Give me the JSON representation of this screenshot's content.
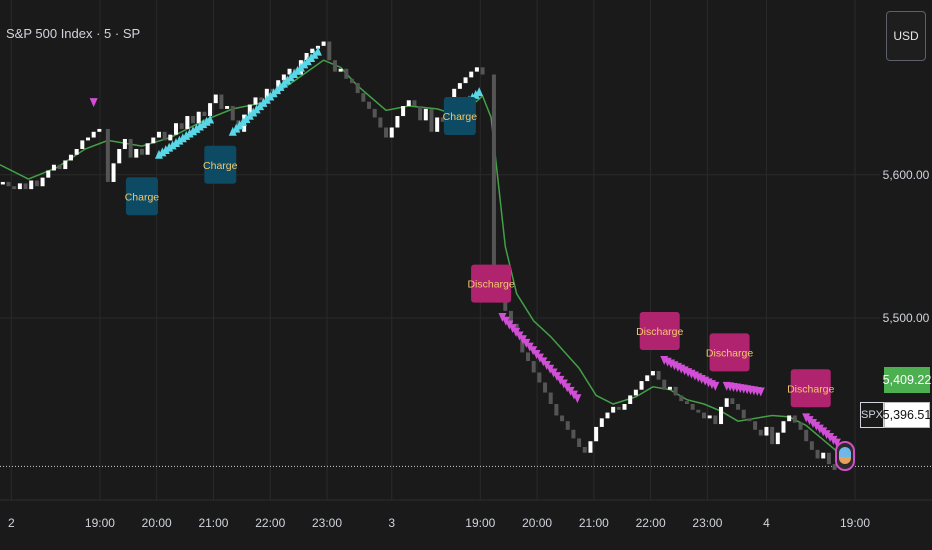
{
  "header": {
    "title": "S&P 500 Index · 5 · SP"
  },
  "currency_button": {
    "label": "USD"
  },
  "price_tags": {
    "ema_value": "5,409.22",
    "last_price": "5,396.51",
    "symbol": "SPX"
  },
  "colors": {
    "background": "#1a1a1a",
    "grid": "#2a2a2a",
    "candle_up": "#ffffff",
    "candle_down": "#555555",
    "ema_line": "#43a047",
    "charge_marker": "#5ad7e6",
    "discharge_marker": "#d14fd6",
    "charge_label_bg": "#0d4a63",
    "discharge_label_bg": "#b0246f",
    "label_text": "#f2c76e",
    "green_tag": "#4caf50"
  },
  "chart_data": {
    "type": "line",
    "title": "S&P 500 Index · 5 · SP",
    "ylim": [
      5373,
      5722
    ],
    "y_ticks": [
      5600,
      5500
    ],
    "y_tick_labels": [
      "5,600.00",
      "5,500.00"
    ],
    "x_ticks": [
      {
        "label": "2",
        "t": 0
      },
      {
        "label": "19:00",
        "t": 1.56
      },
      {
        "label": "20:00",
        "t": 2.56
      },
      {
        "label": "21:00",
        "t": 3.56
      },
      {
        "label": "22:00",
        "t": 4.56
      },
      {
        "label": "23:00",
        "t": 5.56
      },
      {
        "label": "3",
        "t": 6.7
      },
      {
        "label": "19:00",
        "t": 8.26
      },
      {
        "label": "20:00",
        "t": 9.26
      },
      {
        "label": "21:00",
        "t": 10.26
      },
      {
        "label": "22:00",
        "t": 11.26
      },
      {
        "label": "23:00",
        "t": 12.26
      },
      {
        "label": "4",
        "t": 13.3
      },
      {
        "label": "19:00",
        "t": 14.86
      }
    ],
    "x_range": [
      -0.2,
      15.3
    ],
    "series": [
      {
        "type": "candles",
        "data": [
          [
            -0.15,
            5595
          ],
          [
            -0.05,
            5592
          ],
          [
            0.05,
            5590
          ],
          [
            0.15,
            5594
          ],
          [
            0.25,
            5590
          ],
          [
            0.35,
            5596
          ],
          [
            0.45,
            5592
          ],
          [
            0.55,
            5598
          ],
          [
            0.65,
            5603
          ],
          [
            0.75,
            5607
          ],
          [
            0.85,
            5604
          ],
          [
            0.95,
            5610
          ],
          [
            1.05,
            5614
          ],
          [
            1.15,
            5618
          ],
          [
            1.25,
            5624
          ],
          [
            1.35,
            5626
          ],
          [
            1.45,
            5630
          ],
          [
            1.55,
            5632
          ],
          [
            1.7,
            5595
          ],
          [
            1.8,
            5608
          ],
          [
            1.9,
            5618
          ],
          [
            2.0,
            5625
          ],
          [
            2.1,
            5612
          ],
          [
            2.2,
            5618
          ],
          [
            2.3,
            5614
          ],
          [
            2.4,
            5622
          ],
          [
            2.5,
            5626
          ],
          [
            2.6,
            5630
          ],
          [
            2.7,
            5624
          ],
          [
            2.8,
            5628
          ],
          [
            2.9,
            5636
          ],
          [
            3.0,
            5632
          ],
          [
            3.1,
            5641
          ],
          [
            3.2,
            5636
          ],
          [
            3.3,
            5644
          ],
          [
            3.4,
            5641
          ],
          [
            3.5,
            5650
          ],
          [
            3.6,
            5656
          ],
          [
            3.7,
            5646
          ],
          [
            3.8,
            5648
          ],
          [
            3.9,
            5638
          ],
          [
            4.0,
            5630
          ],
          [
            4.1,
            5642
          ],
          [
            4.2,
            5649
          ],
          [
            4.3,
            5654
          ],
          [
            4.4,
            5652
          ],
          [
            4.5,
            5660
          ],
          [
            4.6,
            5658
          ],
          [
            4.7,
            5666
          ],
          [
            4.8,
            5670
          ],
          [
            4.9,
            5674
          ],
          [
            5.0,
            5670
          ],
          [
            5.1,
            5680
          ],
          [
            5.2,
            5685
          ],
          [
            5.3,
            5688
          ],
          [
            5.4,
            5690
          ],
          [
            5.5,
            5693
          ],
          [
            5.6,
            5680
          ],
          [
            5.7,
            5672
          ],
          [
            5.8,
            5674
          ],
          [
            5.9,
            5667
          ],
          [
            6.0,
            5664
          ],
          [
            6.1,
            5657
          ],
          [
            6.2,
            5651
          ],
          [
            6.3,
            5646
          ],
          [
            6.4,
            5640
          ],
          [
            6.5,
            5633
          ],
          [
            6.6,
            5626
          ],
          [
            6.7,
            5633
          ],
          [
            6.8,
            5641
          ],
          [
            6.9,
            5648
          ],
          [
            7.0,
            5652
          ],
          [
            7.1,
            5648
          ],
          [
            7.2,
            5638
          ],
          [
            7.3,
            5646
          ],
          [
            7.4,
            5630
          ],
          [
            7.5,
            5640
          ],
          [
            7.6,
            5637
          ],
          [
            7.7,
            5650
          ],
          [
            7.8,
            5660
          ],
          [
            7.9,
            5664
          ],
          [
            8.0,
            5668
          ],
          [
            8.1,
            5672
          ],
          [
            8.2,
            5675
          ],
          [
            8.3,
            5670
          ],
          [
            8.5,
            5520
          ],
          [
            8.6,
            5515
          ],
          [
            8.7,
            5505
          ],
          [
            8.8,
            5496
          ],
          [
            8.9,
            5488
          ],
          [
            9.0,
            5476
          ],
          [
            9.1,
            5470
          ],
          [
            9.2,
            5462
          ],
          [
            9.3,
            5455
          ],
          [
            9.4,
            5448
          ],
          [
            9.5,
            5440
          ],
          [
            9.6,
            5432
          ],
          [
            9.7,
            5428
          ],
          [
            9.8,
            5422
          ],
          [
            9.9,
            5416
          ],
          [
            10.0,
            5410
          ],
          [
            10.1,
            5406
          ],
          [
            10.2,
            5414
          ],
          [
            10.3,
            5424
          ],
          [
            10.4,
            5430
          ],
          [
            10.5,
            5434
          ],
          [
            10.6,
            5438
          ],
          [
            10.7,
            5436
          ],
          [
            10.8,
            5440
          ],
          [
            10.9,
            5446
          ],
          [
            11.0,
            5450
          ],
          [
            11.1,
            5456
          ],
          [
            11.2,
            5460
          ],
          [
            11.3,
            5463
          ],
          [
            11.4,
            5457
          ],
          [
            11.5,
            5450
          ],
          [
            11.6,
            5452
          ],
          [
            11.7,
            5446
          ],
          [
            11.8,
            5442
          ],
          [
            11.9,
            5440
          ],
          [
            12.0,
            5436
          ],
          [
            12.1,
            5434
          ],
          [
            12.2,
            5430
          ],
          [
            12.3,
            5432
          ],
          [
            12.4,
            5426
          ],
          [
            12.5,
            5438
          ],
          [
            12.6,
            5444
          ],
          [
            12.7,
            5440
          ],
          [
            12.8,
            5436
          ],
          [
            12.9,
            5430
          ],
          [
            13.0,
            5428
          ],
          [
            13.1,
            5422
          ],
          [
            13.2,
            5418
          ],
          [
            13.3,
            5424
          ],
          [
            13.4,
            5412
          ],
          [
            13.5,
            5420
          ],
          [
            13.6,
            5428
          ],
          [
            13.7,
            5432
          ],
          [
            13.8,
            5427
          ],
          [
            13.9,
            5422
          ],
          [
            14.0,
            5414
          ],
          [
            14.1,
            5408
          ],
          [
            14.2,
            5402
          ],
          [
            14.3,
            5406
          ],
          [
            14.4,
            5398
          ],
          [
            14.5,
            5394
          ]
        ]
      },
      {
        "type": "ema",
        "data": [
          [
            -0.2,
            5607
          ],
          [
            0.3,
            5597
          ],
          [
            0.8,
            5605
          ],
          [
            1.3,
            5618
          ],
          [
            1.7,
            5624
          ],
          [
            2.3,
            5620
          ],
          [
            2.8,
            5626
          ],
          [
            3.4,
            5638
          ],
          [
            3.9,
            5646
          ],
          [
            4.4,
            5650
          ],
          [
            5.0,
            5666
          ],
          [
            5.5,
            5680
          ],
          [
            5.8,
            5675
          ],
          [
            6.1,
            5662
          ],
          [
            6.6,
            5645
          ],
          [
            7.0,
            5648
          ],
          [
            7.5,
            5646
          ],
          [
            7.9,
            5641
          ],
          [
            8.3,
            5655
          ],
          [
            8.45,
            5640
          ],
          [
            8.7,
            5550
          ],
          [
            8.9,
            5517
          ],
          [
            9.2,
            5498
          ],
          [
            9.5,
            5487
          ],
          [
            10.0,
            5465
          ],
          [
            10.3,
            5446
          ],
          [
            10.6,
            5440
          ],
          [
            11.0,
            5445
          ],
          [
            11.3,
            5452
          ],
          [
            11.6,
            5450
          ],
          [
            11.9,
            5443
          ],
          [
            12.2,
            5440
          ],
          [
            12.5,
            5435
          ],
          [
            12.8,
            5428
          ],
          [
            13.1,
            5430
          ],
          [
            13.4,
            5432
          ],
          [
            13.7,
            5431
          ],
          [
            14.0,
            5425
          ],
          [
            14.3,
            5415
          ],
          [
            14.6,
            5405
          ]
        ]
      }
    ],
    "charge_regions": [
      {
        "from": 2.6,
        "to": 3.55,
        "y_from": 5614,
        "y_to": 5640
      },
      {
        "from": 3.9,
        "to": 5.4,
        "y_from": 5630,
        "y_to": 5686
      },
      {
        "from": 8.0,
        "to": 8.25,
        "y_from": 5650,
        "y_to": 5658
      }
    ],
    "discharge_regions": [
      {
        "from": 8.65,
        "to": 10.0,
        "y_from": 5500,
        "y_to": 5442
      },
      {
        "from": 11.5,
        "to": 12.4,
        "y_from": 5470,
        "y_to": 5452
      },
      {
        "from": 12.6,
        "to": 13.2,
        "y_from": 5452,
        "y_to": 5448
      },
      {
        "from": 14.0,
        "to": 14.55,
        "y_from": 5430,
        "y_to": 5412
      }
    ],
    "single_markers": [
      {
        "t": 1.45,
        "y": 5650,
        "kind": "discharge"
      }
    ],
    "annotations": [
      {
        "text": "Charge",
        "kind": "charge",
        "t": 2.3,
        "y": 5585
      },
      {
        "text": "Charge",
        "kind": "charge",
        "t": 3.68,
        "y": 5607
      },
      {
        "text": "Charge",
        "kind": "charge",
        "t": 7.9,
        "y": 5641
      },
      {
        "text": "Discharge",
        "kind": "discharge",
        "t": 8.45,
        "y": 5524
      },
      {
        "text": "Discharge",
        "kind": "discharge",
        "t": 11.42,
        "y": 5491
      },
      {
        "text": "Discharge",
        "kind": "discharge",
        "t": 12.65,
        "y": 5476
      },
      {
        "text": "Discharge",
        "kind": "discharge",
        "t": 14.08,
        "y": 5451
      }
    ],
    "last_price_line": 5396.51
  }
}
